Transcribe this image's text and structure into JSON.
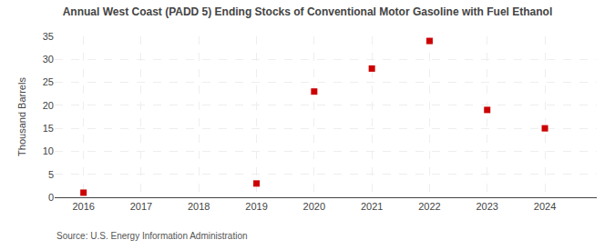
{
  "chart_data": {
    "type": "scatter",
    "title": "Annual West Coast (PADD 5) Ending Stocks of Conventional Motor Gasoline with Fuel Ethanol",
    "ylabel": "Thousand Barrels",
    "annotations": [
      "Source: U.S. Energy Information Administration"
    ],
    "x": [
      2016,
      2019,
      2020,
      2021,
      2022,
      2023,
      2024
    ],
    "values": [
      1,
      3,
      23,
      28,
      34,
      19,
      15
    ],
    "xlim": [
      2015.5,
      2024.9
    ],
    "xticks": [
      2016,
      2017,
      2018,
      2019,
      2020,
      2021,
      2022,
      2023,
      2024
    ],
    "ylim": [
      0,
      35
    ],
    "yticks": [
      0,
      5,
      10,
      15,
      20,
      25,
      30,
      35
    ],
    "color": "#cc0000",
    "marker": "square",
    "grid": true
  }
}
